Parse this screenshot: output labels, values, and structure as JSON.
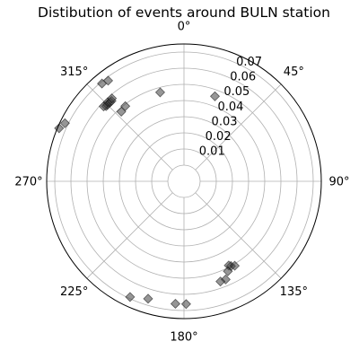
{
  "chart_data": {
    "type": "scatter",
    "projection": "polar",
    "title": "Distibution of events around BULN station",
    "theta_zero_location": "N",
    "theta_direction": "clockwise",
    "theta_ticks": [
      0,
      45,
      90,
      135,
      180,
      225,
      270,
      315
    ],
    "theta_tick_labels": [
      "0°",
      "45°",
      "90°",
      "135°",
      "180°",
      "225°",
      "270°",
      "315°"
    ],
    "r_ticks": [
      0.01,
      0.02,
      0.03,
      0.04,
      0.05,
      0.06,
      0.07
    ],
    "r_tick_labels": [
      "0.01",
      "0.02",
      "0.03",
      "0.04",
      "0.05",
      "0.06",
      "0.07"
    ],
    "rlim": [
      -0.01,
      0.075
    ],
    "r_label_angle_deg": 22.5,
    "grid": true,
    "marker": "diamond",
    "marker_color": "#404040",
    "points": [
      {
        "theta": 20,
        "r": 0.046
      },
      {
        "theta": 345,
        "r": 0.047
      },
      {
        "theta": 318,
        "r": 0.048
      },
      {
        "theta": 322,
        "r": 0.049
      },
      {
        "theta": 314,
        "r": 0.057
      },
      {
        "theta": 315,
        "r": 0.057
      },
      {
        "theta": 316,
        "r": 0.058
      },
      {
        "theta": 317,
        "r": 0.057
      },
      {
        "theta": 318,
        "r": 0.057
      },
      {
        "theta": 313,
        "r": 0.058
      },
      {
        "theta": 319,
        "r": 0.058
      },
      {
        "theta": 323,
        "r": 0.068
      },
      {
        "theta": 320,
        "r": 0.069
      },
      {
        "theta": 296,
        "r": 0.072
      },
      {
        "theta": 293,
        "r": 0.074
      },
      {
        "theta": 151,
        "r": 0.05
      },
      {
        "theta": 152,
        "r": 0.049
      },
      {
        "theta": 149,
        "r": 0.051
      },
      {
        "theta": 154,
        "r": 0.052
      },
      {
        "theta": 157,
        "r": 0.056
      },
      {
        "theta": 160,
        "r": 0.056
      },
      {
        "theta": 179,
        "r": 0.066
      },
      {
        "theta": 184,
        "r": 0.066
      },
      {
        "theta": 197,
        "r": 0.066
      },
      {
        "theta": 205,
        "r": 0.069
      }
    ]
  }
}
